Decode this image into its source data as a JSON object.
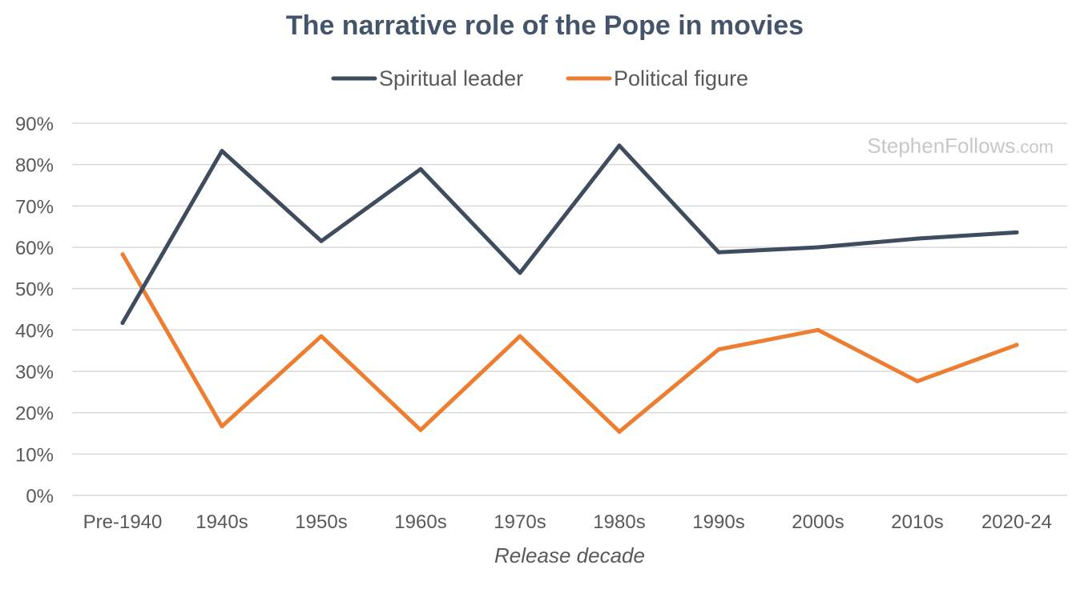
{
  "chart_data": {
    "type": "line",
    "title": "The narrative role of the Pope in movies",
    "xlabel": "Release decade",
    "ylabel": "",
    "categories": [
      "Pre-1940",
      "1940s",
      "1950s",
      "1960s",
      "1970s",
      "1980s",
      "1990s",
      "2000s",
      "2010s",
      "2020-24"
    ],
    "ylim": [
      0,
      90
    ],
    "yticks": [
      "0%",
      "10%",
      "20%",
      "30%",
      "40%",
      "50%",
      "60%",
      "70%",
      "80%",
      "90%"
    ],
    "grid": true,
    "legend_position": "top-center",
    "series": [
      {
        "name": "Spiritual leader",
        "color": "#3e4c5e",
        "values": [
          41.7,
          83.3,
          61.5,
          78.9,
          53.8,
          84.6,
          58.8,
          60.0,
          62.1,
          63.6
        ]
      },
      {
        "name": "Political figure",
        "color": "#ed7d31",
        "values": [
          58.3,
          16.7,
          38.5,
          15.8,
          38.5,
          15.4,
          35.3,
          40.0,
          27.6,
          36.4
        ]
      }
    ]
  },
  "watermark": {
    "brand": "StephenFollows",
    "suffix": ".com"
  }
}
